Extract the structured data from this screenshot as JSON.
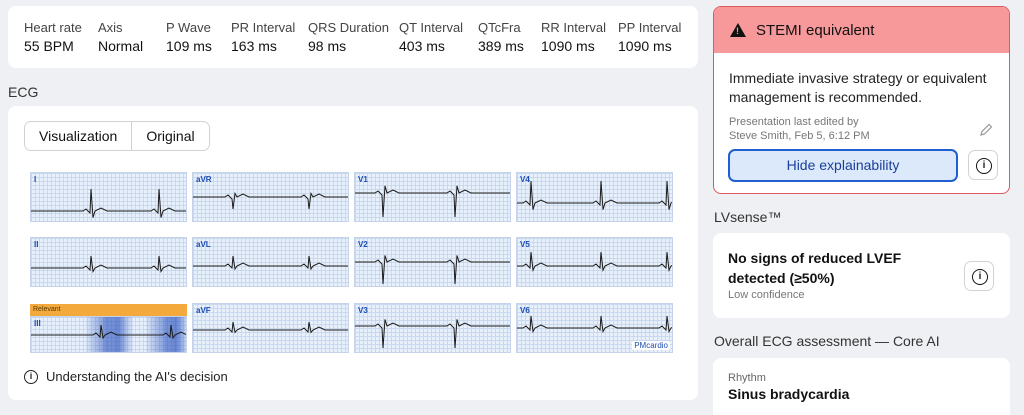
{
  "metrics": [
    {
      "label": "Heart rate",
      "value": "55 BPM"
    },
    {
      "label": "Axis",
      "value": "Normal"
    },
    {
      "label": "P Wave",
      "value": "109 ms"
    },
    {
      "label": "PR Interval",
      "value": "163 ms"
    },
    {
      "label": "QRS Duration",
      "value": "98 ms"
    },
    {
      "label": "QT Interval",
      "value": "403 ms"
    },
    {
      "label": "QTcFra",
      "value": "389 ms"
    },
    {
      "label": "RR Interval",
      "value": "1090 ms"
    },
    {
      "label": "PP Interval",
      "value": "1090 ms"
    }
  ],
  "ecg": {
    "section_title": "ECG",
    "tabs": [
      "Visualization",
      "Original"
    ],
    "active_tab": "Visualization",
    "leads": [
      "I",
      "aVR",
      "V1",
      "V4",
      "II",
      "aVL",
      "V2",
      "V5",
      "III",
      "aVF",
      "V3",
      "V6"
    ],
    "relevant_label": "Relevant",
    "watermark": "PMcardio",
    "ai_info": "Understanding the AI's decision"
  },
  "stemi": {
    "title": "STEMI equivalent",
    "text": "Immediate invasive strategy or equivalent management is recommended.",
    "edited_line1": "Presentation last edited by",
    "edited_line2": "Steve Smith, Feb 5, 6:12 PM",
    "button": "Hide explainability"
  },
  "lvsense": {
    "section_title": "LVsense™",
    "main": "No signs of reduced LVEF detected (≥50%)",
    "confidence": "Low confidence"
  },
  "overall": {
    "section_title": "Overall ECG assessment — Core AI",
    "rhythm_label": "Rhythm",
    "rhythm_value": "Sinus bradycardia"
  },
  "colors": {
    "alert_bg": "#f7989a",
    "alert_border": "#e0575c",
    "button_blue": "#1f5fd0",
    "relevant": "#f4a93c"
  },
  "icons": [
    "warning-icon",
    "info-icon",
    "pencil-icon"
  ]
}
